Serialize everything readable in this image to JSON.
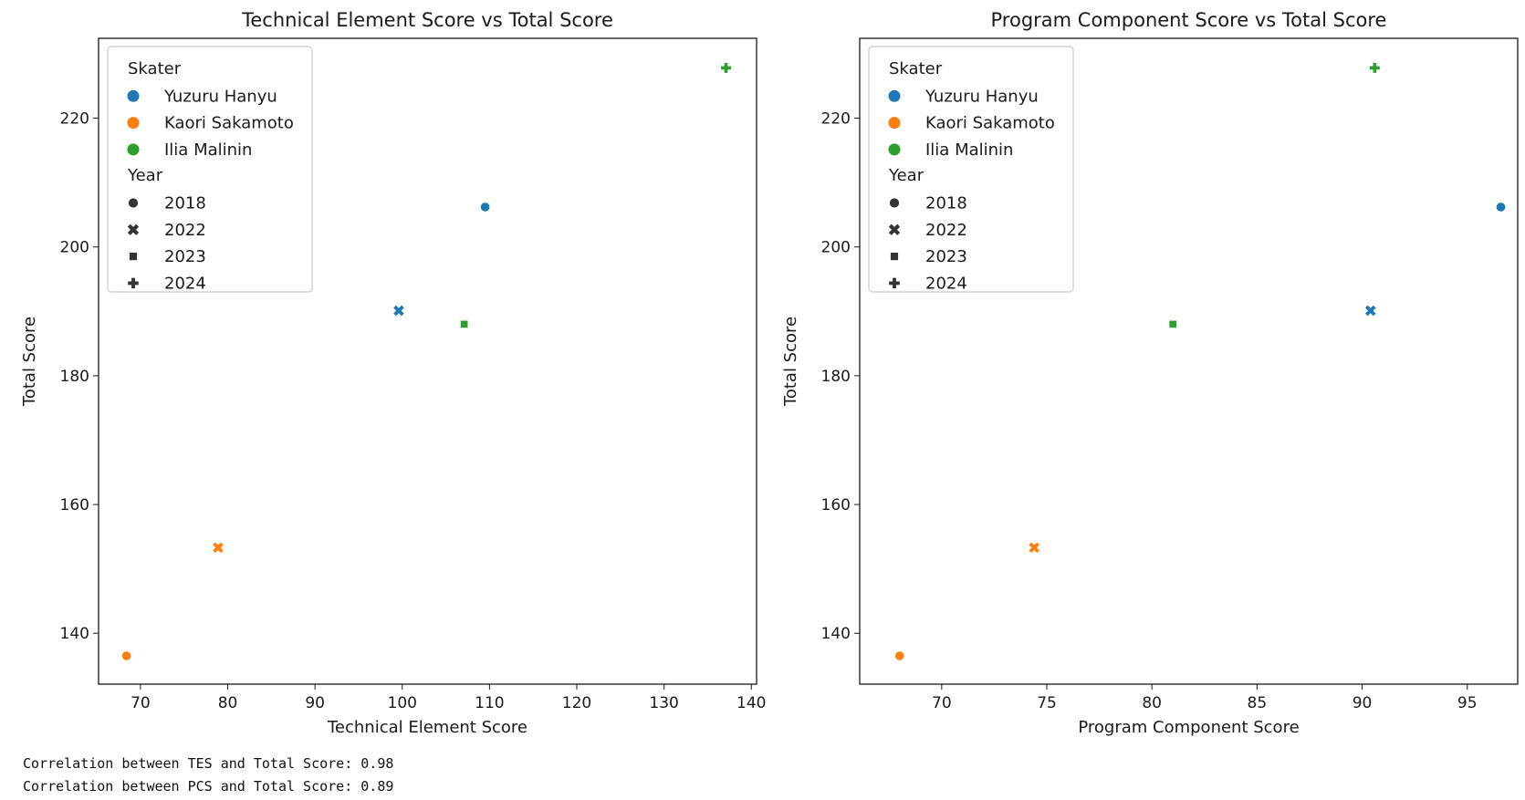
{
  "colors": {
    "Yuzuru Hanyu": "#1f77b4",
    "Kaori Sakamoto": "#ff7f0e",
    "Ilia Malinin": "#2ca02c"
  },
  "chart_data": [
    {
      "type": "scatter",
      "title": "Technical Element Score vs Total Score",
      "xlabel": "Technical Element Score",
      "ylabel": "Total Score",
      "xlim": [
        65.2,
        140.6
      ],
      "ylim": [
        132.1,
        232.4
      ],
      "xticks": [
        70,
        80,
        90,
        100,
        110,
        120,
        130,
        140
      ],
      "yticks": [
        140,
        160,
        180,
        200,
        220
      ],
      "grid": false,
      "legend_position": "top-left",
      "points": [
        {
          "skater": "Yuzuru Hanyu",
          "year": "2018",
          "x": 109.5,
          "y": 206.2
        },
        {
          "skater": "Yuzuru Hanyu",
          "year": "2022",
          "x": 99.6,
          "y": 190.1
        },
        {
          "skater": "Kaori Sakamoto",
          "year": "2018",
          "x": 68.4,
          "y": 136.5
        },
        {
          "skater": "Kaori Sakamoto",
          "year": "2022",
          "x": 78.9,
          "y": 153.3
        },
        {
          "skater": "Ilia Malinin",
          "year": "2023",
          "x": 107.1,
          "y": 188.0
        },
        {
          "skater": "Ilia Malinin",
          "year": "2024",
          "x": 137.1,
          "y": 227.8
        }
      ]
    },
    {
      "type": "scatter",
      "title": "Program Component Score vs Total Score",
      "xlabel": "Program Component Score",
      "ylabel": "Total Score",
      "xlim": [
        66.1,
        97.4
      ],
      "ylim": [
        132.1,
        232.4
      ],
      "xticks": [
        70,
        75,
        80,
        85,
        90,
        95
      ],
      "yticks": [
        140,
        160,
        180,
        200,
        220
      ],
      "grid": false,
      "legend_position": "top-left",
      "points": [
        {
          "skater": "Yuzuru Hanyu",
          "year": "2018",
          "x": 96.6,
          "y": 206.2
        },
        {
          "skater": "Yuzuru Hanyu",
          "year": "2022",
          "x": 90.4,
          "y": 190.1
        },
        {
          "skater": "Kaori Sakamoto",
          "year": "2018",
          "x": 68.0,
          "y": 136.5
        },
        {
          "skater": "Kaori Sakamoto",
          "year": "2022",
          "x": 74.4,
          "y": 153.3
        },
        {
          "skater": "Ilia Malinin",
          "year": "2023",
          "x": 81.0,
          "y": 188.0
        },
        {
          "skater": "Ilia Malinin",
          "year": "2024",
          "x": 90.6,
          "y": 227.8
        }
      ]
    }
  ],
  "legend": {
    "hue_title": "Skater",
    "hue_entries": [
      "Yuzuru Hanyu",
      "Kaori Sakamoto",
      "Ilia Malinin"
    ],
    "style_title": "Year",
    "style_entries": [
      {
        "label": "2018",
        "marker": "circle"
      },
      {
        "label": "2022",
        "marker": "x"
      },
      {
        "label": "2023",
        "marker": "square"
      },
      {
        "label": "2024",
        "marker": "plus"
      }
    ]
  },
  "output": {
    "corr_tes": "Correlation between TES and Total Score: 0.98",
    "corr_pcs": "Correlation between PCS and Total Score: 0.89"
  }
}
